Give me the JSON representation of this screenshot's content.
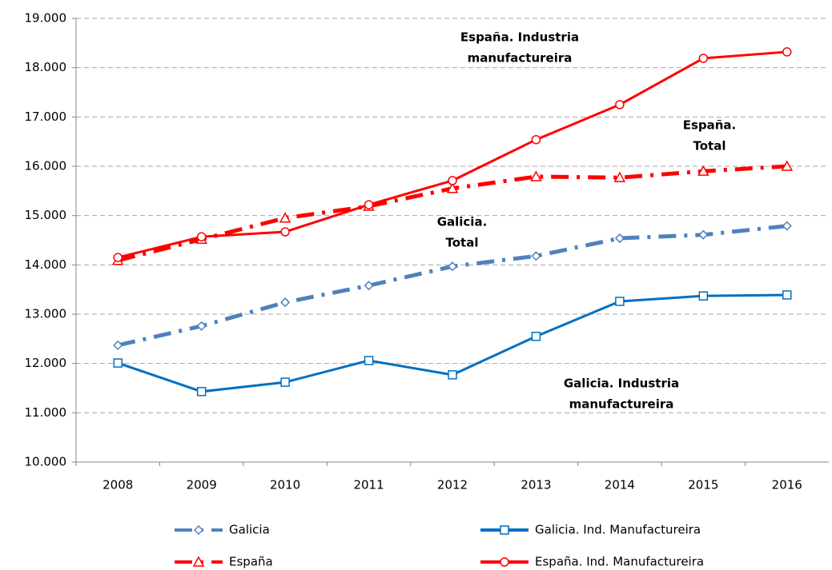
{
  "chart_data": {
    "type": "line",
    "categories": [
      "2008",
      "2009",
      "2010",
      "2011",
      "2012",
      "2013",
      "2014",
      "2015",
      "2016"
    ],
    "ylim": [
      10000,
      19000
    ],
    "yticks": [
      {
        "value": 10000,
        "label": "10.000"
      },
      {
        "value": 11000,
        "label": "11.000"
      },
      {
        "value": 12000,
        "label": "12.000"
      },
      {
        "value": 13000,
        "label": "13.000"
      },
      {
        "value": 14000,
        "label": "14.000"
      },
      {
        "value": 15000,
        "label": "15.000"
      },
      {
        "value": 16000,
        "label": "16.000"
      },
      {
        "value": 17000,
        "label": "17.000"
      },
      {
        "value": 18000,
        "label": "18.000"
      },
      {
        "value": 19000,
        "label": "19.000"
      }
    ],
    "grid": true,
    "series": [
      {
        "name": "Galicia",
        "color": "#4f81bd",
        "dash": "dashdot",
        "marker": "diamond",
        "values": [
          12370,
          12760,
          13240,
          13580,
          13970,
          14180,
          14540,
          14610,
          14790
        ]
      },
      {
        "name": "Galicia. Ind. Manufactureira",
        "color": "#0070c0",
        "dash": "solid",
        "marker": "square",
        "values": [
          12010,
          11430,
          11620,
          12060,
          11770,
          12550,
          13260,
          13370,
          13390
        ]
      },
      {
        "name": "España",
        "color": "#ff0000",
        "dash": "dashdot",
        "marker": "triangle",
        "values": [
          14090,
          14520,
          14950,
          15190,
          15550,
          15790,
          15770,
          15900,
          16000
        ]
      },
      {
        "name": "España. Ind. Manufactureira",
        "color": "#ff0000",
        "dash": "solid",
        "marker": "circle",
        "values": [
          14150,
          14570,
          14670,
          15220,
          15710,
          16540,
          17250,
          18190,
          18320
        ]
      }
    ],
    "annotations": [
      {
        "lines": [
          "España. Industria",
          "manufactureira"
        ]
      },
      {
        "lines": [
          "España.",
          "Total"
        ]
      },
      {
        "lines": [
          "Galicia.",
          "Total"
        ]
      },
      {
        "lines": [
          "Galicia. Industria",
          "manufactureira"
        ]
      }
    ]
  }
}
